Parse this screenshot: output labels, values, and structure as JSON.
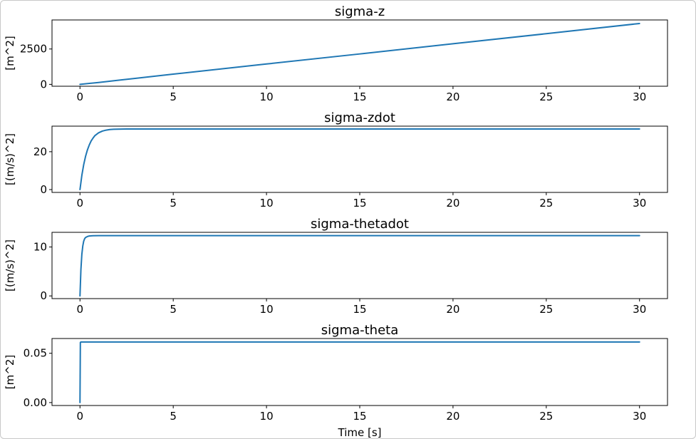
{
  "figure": {
    "xlabel": "Time [s]"
  },
  "colors": {
    "series": "#1f77b4",
    "frame": "#000000",
    "background": "#ffffff"
  },
  "chart_data": [
    {
      "type": "line",
      "title": "sigma-z",
      "xlabel": "",
      "ylabel": "[m^2]",
      "xlim": [
        -1.5,
        31.5
      ],
      "ylim": [
        -130,
        4550
      ],
      "xticks": [
        0,
        5,
        10,
        15,
        20,
        25,
        30
      ],
      "yticks": [
        0,
        2500
      ],
      "grid": false,
      "series": [
        {
          "x": [
            0,
            1,
            2,
            3,
            5,
            10,
            15,
            20,
            25,
            30
          ],
          "y": [
            0,
            135,
            285,
            430,
            725,
            1440,
            2150,
            2870,
            3580,
            4300
          ]
        }
      ]
    },
    {
      "type": "line",
      "title": "sigma-zdot",
      "xlabel": "",
      "ylabel": "[(m/s)^2]",
      "xlim": [
        -1.5,
        31.5
      ],
      "ylim": [
        -1.5,
        33.5
      ],
      "xticks": [
        0,
        5,
        10,
        15,
        20,
        25,
        30
      ],
      "yticks": [
        0,
        20
      ],
      "grid": false,
      "series": [
        {
          "x": [
            0,
            0.1,
            0.2,
            0.3,
            0.4,
            0.5,
            0.6,
            0.7,
            0.8,
            1.0,
            1.2,
            1.4,
            1.6,
            1.8,
            2.0,
            2.5,
            3,
            5,
            10,
            15,
            20,
            25,
            30
          ],
          "y": [
            0,
            7.5,
            13.2,
            17.6,
            21.0,
            23.6,
            25.7,
            27.2,
            28.5,
            30.0,
            30.9,
            31.4,
            31.7,
            31.85,
            31.92,
            32.0,
            32.0,
            32.0,
            32.0,
            32.0,
            32.0,
            32.0,
            32.0
          ]
        }
      ]
    },
    {
      "type": "line",
      "title": "sigma-thetadot",
      "xlabel": "",
      "ylabel": "[(m/s)^2]",
      "xlim": [
        -1.5,
        31.5
      ],
      "ylim": [
        -0.55,
        13.0
      ],
      "xticks": [
        0,
        5,
        10,
        15,
        20,
        25,
        30
      ],
      "yticks": [
        0,
        10
      ],
      "grid": false,
      "series": [
        {
          "x": [
            0,
            0.05,
            0.1,
            0.15,
            0.2,
            0.25,
            0.3,
            0.4,
            0.5,
            0.7,
            1.0,
            2,
            5,
            10,
            15,
            20,
            25,
            30
          ],
          "y": [
            0,
            5.4,
            8.5,
            10.2,
            11.2,
            11.7,
            11.95,
            12.15,
            12.25,
            12.3,
            12.32,
            12.33,
            12.33,
            12.33,
            12.33,
            12.33,
            12.33,
            12.33
          ]
        }
      ]
    },
    {
      "type": "line",
      "title": "sigma-theta",
      "xlabel": "Time [s]",
      "ylabel": "[m^2]",
      "xlim": [
        -1.5,
        31.5
      ],
      "ylim": [
        -0.003,
        0.065
      ],
      "xticks": [
        0,
        5,
        10,
        15,
        20,
        25,
        30
      ],
      "yticks": [
        0.0,
        0.05
      ],
      "ytick_labels": [
        "0.00",
        "0.05"
      ],
      "grid": false,
      "series": [
        {
          "x": [
            0,
            0.02,
            0.05,
            0.1,
            1,
            5,
            10,
            15,
            20,
            25,
            30
          ],
          "y": [
            0,
            0.061,
            0.0615,
            0.0615,
            0.0615,
            0.0615,
            0.0615,
            0.0615,
            0.0615,
            0.0615,
            0.0615
          ]
        }
      ]
    }
  ]
}
